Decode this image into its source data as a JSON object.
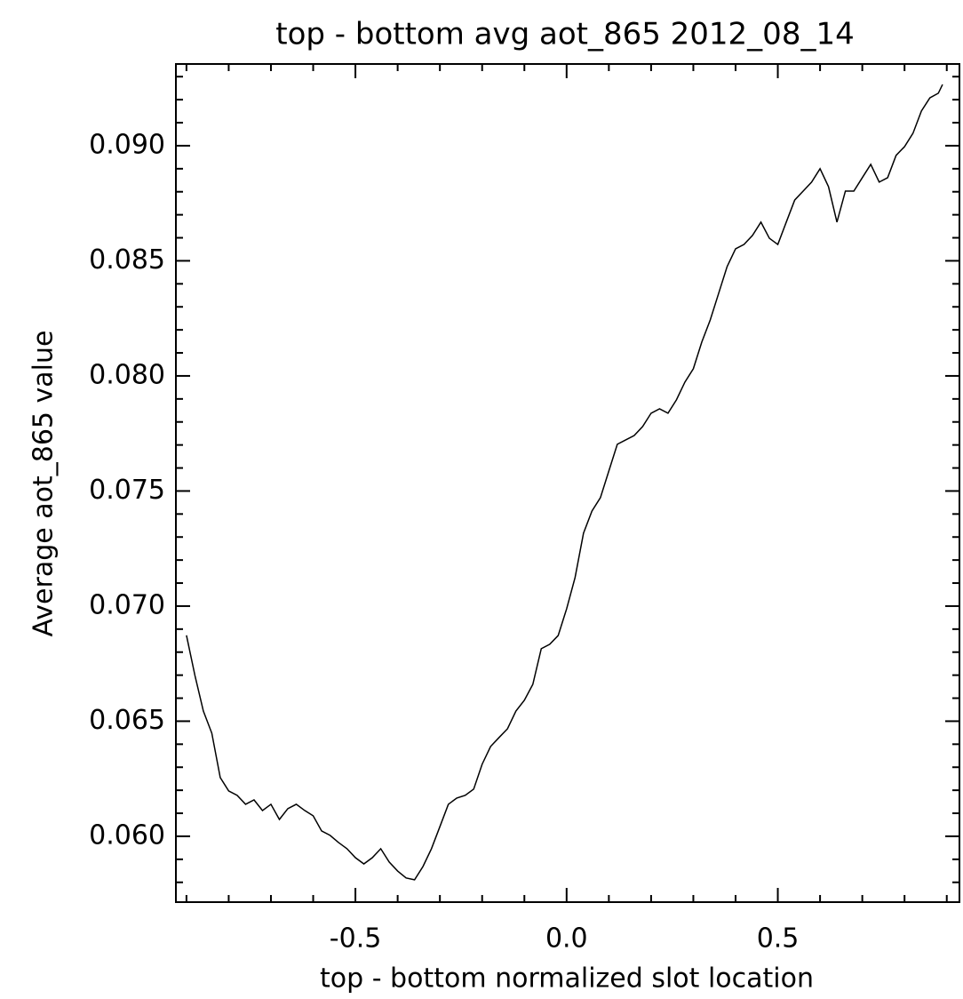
{
  "chart_data": {
    "type": "line",
    "title": "top - bottom avg aot_865  2012_08_14",
    "xlabel": "top - bottom normalized slot location",
    "ylabel": "Average aot_865 value",
    "xlim": [
      -0.925,
      0.93
    ],
    "ylim": [
      0.05714,
      0.09355
    ],
    "xticks": [
      -0.5,
      {
        "value": 0,
        "label": "0.0"
      },
      0.5
    ],
    "yticks": [
      {
        "value": 0.06,
        "label": "0.060"
      },
      {
        "value": 0.065,
        "label": "0.065"
      },
      {
        "value": 0.07,
        "label": "0.070"
      },
      {
        "value": 0.075,
        "label": "0.075"
      },
      {
        "value": 0.08,
        "label": "0.080"
      },
      {
        "value": 0.085,
        "label": "0.085"
      },
      {
        "value": 0.09,
        "label": "0.090"
      }
    ],
    "xminorticks": [
      -0.9,
      -0.8,
      -0.7,
      -0.6,
      -0.4,
      -0.3,
      -0.2,
      -0.1,
      0.1,
      0.2,
      0.3,
      0.4,
      0.6,
      0.7,
      0.8,
      0.9
    ],
    "yminorticks": [
      0.058,
      0.059,
      0.061,
      0.062,
      0.063,
      0.064,
      0.066,
      0.067,
      0.068,
      0.069,
      0.071,
      0.072,
      0.073,
      0.074,
      0.076,
      0.077,
      0.078,
      0.079,
      0.081,
      0.082,
      0.083,
      0.084,
      0.086,
      0.087,
      0.088,
      0.089,
      0.091,
      0.092,
      0.093
    ],
    "grid": false,
    "color": "#000000",
    "x": [
      -0.9,
      -0.88,
      -0.86,
      -0.84,
      -0.82,
      -0.8,
      -0.78,
      -0.76,
      -0.74,
      -0.72,
      -0.7,
      -0.68,
      -0.66,
      -0.64,
      -0.62,
      -0.6,
      -0.58,
      -0.56,
      -0.54,
      -0.52,
      -0.5,
      -0.48,
      -0.46,
      -0.44,
      -0.42,
      -0.4,
      -0.38,
      -0.36,
      -0.34,
      -0.32,
      -0.3,
      -0.28,
      -0.26,
      -0.24,
      -0.22,
      -0.2,
      -0.18,
      -0.16,
      -0.14,
      -0.12,
      -0.1,
      -0.08,
      -0.06,
      -0.04,
      -0.02,
      0,
      0.02,
      0.04,
      0.06,
      0.08,
      0.1,
      0.12,
      0.14,
      0.16,
      0.18,
      0.2,
      0.22,
      0.24,
      0.26,
      0.28,
      0.3,
      0.32,
      0.34,
      0.36,
      0.38,
      0.4,
      0.42,
      0.44,
      0.46,
      0.48,
      0.5,
      0.52,
      0.54,
      0.56,
      0.58,
      0.6,
      0.62,
      0.64,
      0.66,
      0.68,
      0.7,
      0.72,
      0.74,
      0.76,
      0.78,
      0.8,
      0.82,
      0.84,
      0.86,
      0.88,
      0.89
    ],
    "values": [
      0.06873,
      0.06699,
      0.06544,
      0.06448,
      0.06255,
      0.06197,
      0.06178,
      0.06139,
      0.06158,
      0.06112,
      0.06139,
      0.06073,
      0.0612,
      0.06139,
      0.06112,
      0.06089,
      0.06023,
      0.06004,
      0.05973,
      0.05946,
      0.05907,
      0.0588,
      0.05907,
      0.05946,
      0.05888,
      0.05849,
      0.05819,
      0.05811,
      0.05869,
      0.05946,
      0.06042,
      0.06139,
      0.06166,
      0.06178,
      0.06205,
      0.06313,
      0.0639,
      0.06429,
      0.06467,
      0.06544,
      0.06591,
      0.0666,
      0.06815,
      0.06834,
      0.06872,
      0.06988,
      0.07124,
      0.07317,
      0.07413,
      0.07471,
      0.07587,
      0.07703,
      0.07722,
      0.07741,
      0.0778,
      0.07838,
      0.07857,
      0.07838,
      0.07896,
      0.07973,
      0.08031,
      0.08147,
      0.08243,
      0.08359,
      0.08475,
      0.08552,
      0.08571,
      0.0861,
      0.08668,
      0.08598,
      0.08571,
      0.08668,
      0.08764,
      0.08803,
      0.08842,
      0.089,
      0.08822,
      0.08668,
      0.08803,
      0.08803,
      0.08861,
      0.08919,
      0.08842,
      0.08861,
      0.08958,
      0.08996,
      0.09054,
      0.09151,
      0.09208,
      0.09228,
      0.09266
    ]
  }
}
